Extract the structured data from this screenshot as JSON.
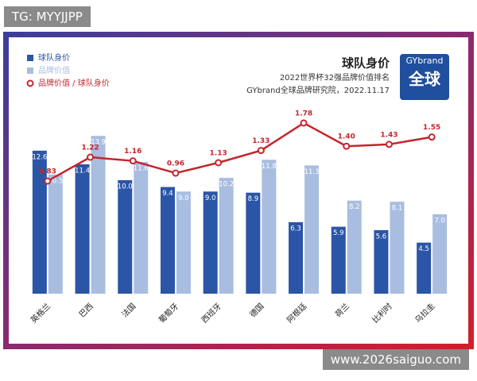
{
  "overlay": {
    "tag": "TG: MYYJJPP",
    "site": "www.2026saiguo.com"
  },
  "chart_data": {
    "type": "bar",
    "title": "球队身价",
    "subtitle": "2022世界杯32强品牌价值排名",
    "source": "GYbrand全球品牌研究院，2022.11.17",
    "logo": {
      "brand": "GYbrand",
      "mark": "全球"
    },
    "legend": "top-left",
    "categories": [
      "英格兰",
      "巴西",
      "法国",
      "葡萄牙",
      "西班牙",
      "德国",
      "阿根廷",
      "荷兰",
      "比利时",
      "乌拉圭"
    ],
    "series": [
      {
        "name": "球队身价",
        "type": "bar",
        "color": "#2b55a6",
        "values": [
          12.6,
          11.4,
          10.0,
          9.4,
          9.0,
          8.9,
          6.3,
          5.9,
          5.6,
          4.5
        ],
        "value_labels": [
          "12.6",
          "11.4",
          "10.0",
          "9.4",
          "9.0",
          "8.9",
          "6.3",
          "5.9",
          "5.6",
          "4.5"
        ]
      },
      {
        "name": "品牌价值",
        "type": "bar",
        "color": "#a9bde0",
        "values": [
          10.5,
          13.9,
          11.6,
          9.0,
          10.2,
          11.8,
          11.3,
          8.2,
          8.1,
          7.0
        ],
        "value_labels": [
          "10.5",
          "13.9",
          "11.6",
          "9.0",
          "10.2",
          "11.8",
          "11.3",
          "8.2",
          "8.1",
          "7.0"
        ]
      },
      {
        "name": "品牌价值 / 球队身价",
        "type": "line",
        "axis": "y2",
        "color": "#c3262d",
        "values": [
          0.83,
          1.22,
          1.16,
          0.96,
          1.13,
          1.33,
          1.78,
          1.4,
          1.43,
          1.55
        ],
        "value_labels": [
          "0.83",
          "1.22",
          "1.16",
          "0.96",
          "1.13",
          "1.33",
          "1.78",
          "1.40",
          "1.43",
          "1.55"
        ]
      }
    ]
  }
}
